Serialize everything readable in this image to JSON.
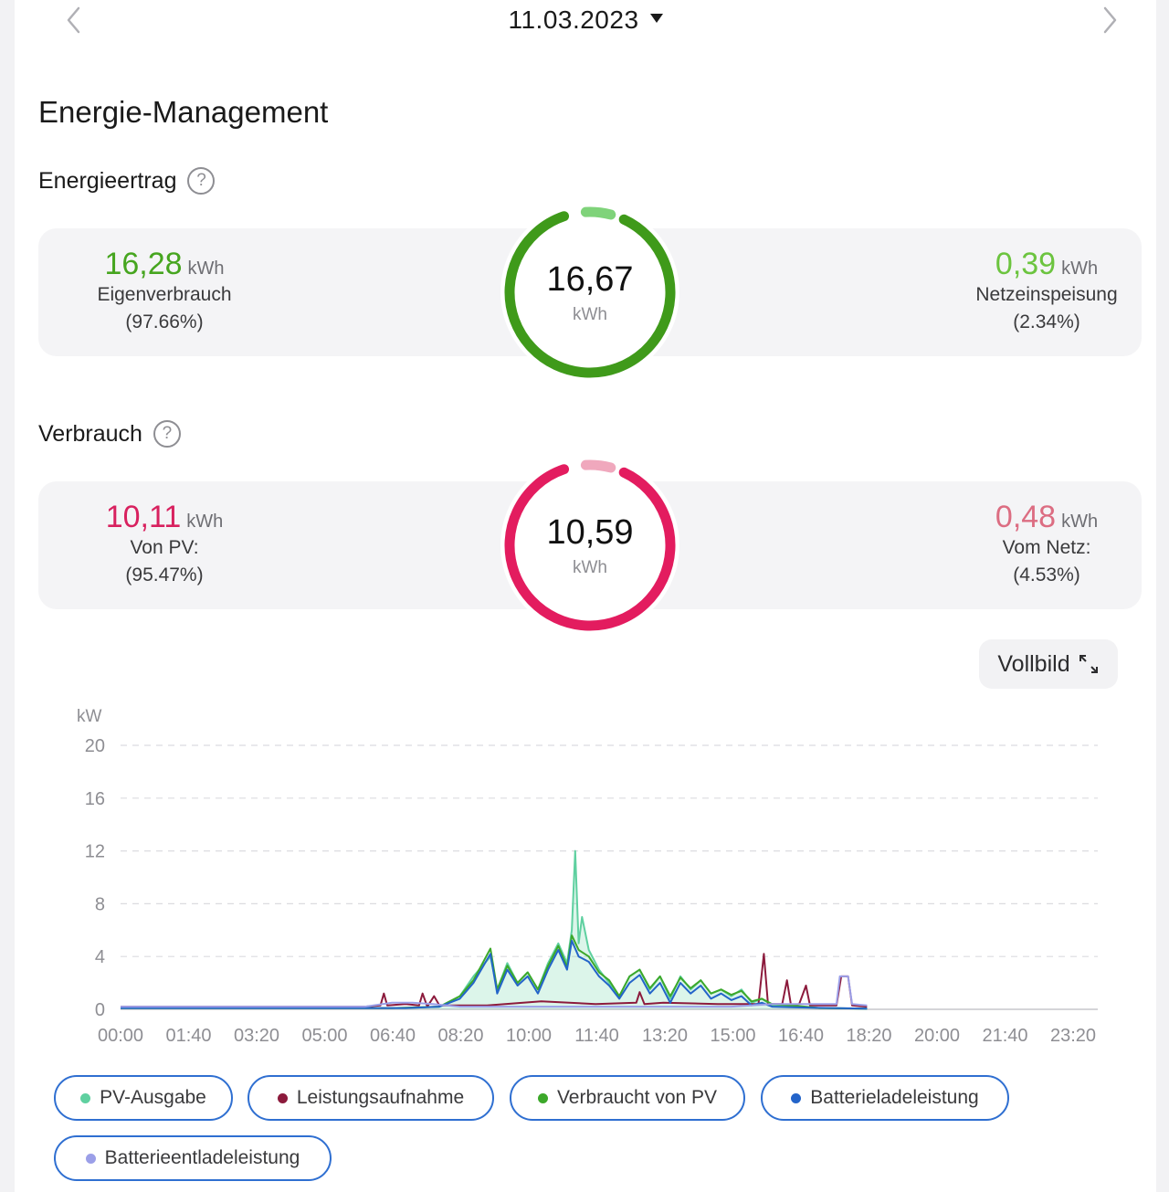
{
  "header": {
    "date": "11.03.2023",
    "prev_icon": "chevron-left-icon",
    "next_icon": "chevron-right-icon",
    "dropdown_icon": "caret-down-icon"
  },
  "page_title": "Energie-Management",
  "energieertrag": {
    "title": "Energieertrag",
    "help_icon": "?",
    "total": "16,67",
    "total_unit": "kWh",
    "left": {
      "value": "16,28",
      "unit": "kWh",
      "label": "Eigenverbrauch",
      "pct": "(97.66%)"
    },
    "right": {
      "value": "0,39",
      "unit": "kWh",
      "label": "Netzeinspeisung",
      "pct": "(2.34%)"
    },
    "colors": {
      "main": "#3f9a1a",
      "main_value": "#46a51f",
      "secondary": "#7fd37a"
    },
    "share_main": 0.9766
  },
  "verbrauch": {
    "title": "Verbrauch",
    "help_icon": "?",
    "total": "10,59",
    "total_unit": "kWh",
    "left": {
      "value": "10,11",
      "unit": "kWh",
      "label": "Von PV:",
      "pct": "(95.47%)"
    },
    "right": {
      "value": "0,48",
      "unit": "kWh",
      "label": "Vom Netz:",
      "pct": "(4.53%)"
    },
    "colors": {
      "main": "#e31c5f",
      "main_value": "#d8215f",
      "secondary": "#f0a8bd",
      "secondary_value": "#dc6d82"
    },
    "share_main": 0.9547
  },
  "fullscreen": {
    "label": "Vollbild",
    "icon": "expand-icon"
  },
  "chart_data": {
    "type": "line",
    "ylabel": "kW",
    "ylim": [
      0,
      20
    ],
    "yticks": [
      "0",
      "4",
      "8",
      "12",
      "16",
      "20"
    ],
    "xticks": [
      "00:00",
      "01:40",
      "03:20",
      "05:00",
      "06:40",
      "08:20",
      "10:00",
      "11:40",
      "13:20",
      "15:00",
      "16:40",
      "18:20",
      "20:00",
      "21:40",
      "23:20"
    ],
    "x_range_minutes": [
      0,
      1440
    ],
    "grid": true,
    "series": [
      {
        "name": "PV-Ausgabe",
        "color": "#5fd0a0",
        "area": true,
        "points": [
          [
            0,
            0.1
          ],
          [
            300,
            0.1
          ],
          [
            420,
            0.1
          ],
          [
            470,
            0.2
          ],
          [
            500,
            1.0
          ],
          [
            520,
            2.5
          ],
          [
            545,
            4.0
          ],
          [
            555,
            1.5
          ],
          [
            570,
            3.5
          ],
          [
            585,
            2.0
          ],
          [
            600,
            2.8
          ],
          [
            615,
            1.5
          ],
          [
            630,
            3.5
          ],
          [
            645,
            5.0
          ],
          [
            658,
            3.5
          ],
          [
            665,
            6.0
          ],
          [
            670,
            12.0
          ],
          [
            675,
            5.0
          ],
          [
            680,
            7.0
          ],
          [
            690,
            4.5
          ],
          [
            705,
            3.0
          ],
          [
            720,
            2.0
          ],
          [
            735,
            1.0
          ],
          [
            750,
            2.5
          ],
          [
            765,
            3.0
          ],
          [
            780,
            1.5
          ],
          [
            795,
            2.5
          ],
          [
            810,
            0.8
          ],
          [
            825,
            2.5
          ],
          [
            840,
            1.5
          ],
          [
            855,
            2.2
          ],
          [
            870,
            1.2
          ],
          [
            885,
            1.5
          ],
          [
            900,
            1.0
          ],
          [
            915,
            1.5
          ],
          [
            930,
            0.5
          ],
          [
            945,
            0.8
          ],
          [
            960,
            0.3
          ],
          [
            975,
            0.3
          ],
          [
            990,
            0.2
          ],
          [
            1030,
            0.1
          ],
          [
            1100,
            0.05
          ]
        ]
      },
      {
        "name": "Leistungsaufnahme",
        "color": "#8c1a3c",
        "area": false,
        "points": [
          [
            0,
            0.2
          ],
          [
            360,
            0.2
          ],
          [
            383,
            0.3
          ],
          [
            388,
            1.2
          ],
          [
            393,
            0.3
          ],
          [
            420,
            0.4
          ],
          [
            440,
            0.3
          ],
          [
            445,
            1.2
          ],
          [
            452,
            0.2
          ],
          [
            462,
            1.0
          ],
          [
            470,
            0.3
          ],
          [
            540,
            0.3
          ],
          [
            620,
            0.6
          ],
          [
            700,
            0.4
          ],
          [
            760,
            0.5
          ],
          [
            765,
            1.3
          ],
          [
            772,
            0.4
          ],
          [
            800,
            0.5
          ],
          [
            880,
            0.4
          ],
          [
            940,
            0.4
          ],
          [
            948,
            4.2
          ],
          [
            954,
            0.4
          ],
          [
            975,
            0.4
          ],
          [
            982,
            2.2
          ],
          [
            988,
            0.3
          ],
          [
            1000,
            0.4
          ],
          [
            1010,
            1.8
          ],
          [
            1016,
            0.3
          ],
          [
            1055,
            0.3
          ],
          [
            1062,
            2.5
          ],
          [
            1072,
            2.5
          ],
          [
            1078,
            0.3
          ],
          [
            1100,
            0.2
          ]
        ]
      },
      {
        "name": "Verbraucht von PV",
        "color": "#3ca82a",
        "area": false,
        "points": [
          [
            0,
            0.1
          ],
          [
            400,
            0.1
          ],
          [
            470,
            0.2
          ],
          [
            500,
            1.0
          ],
          [
            520,
            2.2
          ],
          [
            545,
            4.6
          ],
          [
            555,
            1.5
          ],
          [
            570,
            3.3
          ],
          [
            585,
            2.0
          ],
          [
            600,
            2.8
          ],
          [
            615,
            1.5
          ],
          [
            630,
            3.3
          ],
          [
            645,
            4.8
          ],
          [
            658,
            3.2
          ],
          [
            665,
            5.6
          ],
          [
            675,
            4.5
          ],
          [
            690,
            4.0
          ],
          [
            705,
            2.8
          ],
          [
            720,
            2.2
          ],
          [
            735,
            1.0
          ],
          [
            750,
            2.5
          ],
          [
            765,
            3.0
          ],
          [
            780,
            1.6
          ],
          [
            795,
            2.5
          ],
          [
            810,
            1.0
          ],
          [
            825,
            2.4
          ],
          [
            840,
            1.6
          ],
          [
            855,
            2.2
          ],
          [
            870,
            1.2
          ],
          [
            885,
            1.5
          ],
          [
            900,
            1.1
          ],
          [
            915,
            1.4
          ],
          [
            930,
            0.6
          ],
          [
            945,
            0.8
          ],
          [
            960,
            0.4
          ],
          [
            990,
            0.3
          ],
          [
            1030,
            0.1
          ],
          [
            1100,
            0.05
          ]
        ]
      },
      {
        "name": "Batterieladeleistung",
        "color": "#2364c9",
        "area": false,
        "points": [
          [
            0,
            0.1
          ],
          [
            420,
            0.1
          ],
          [
            470,
            0.2
          ],
          [
            500,
            0.8
          ],
          [
            520,
            2.0
          ],
          [
            545,
            4.2
          ],
          [
            555,
            1.2
          ],
          [
            570,
            3.0
          ],
          [
            585,
            1.8
          ],
          [
            600,
            2.5
          ],
          [
            615,
            1.2
          ],
          [
            630,
            3.0
          ],
          [
            645,
            4.5
          ],
          [
            658,
            3.0
          ],
          [
            665,
            5.2
          ],
          [
            675,
            4.0
          ],
          [
            690,
            3.6
          ],
          [
            705,
            2.5
          ],
          [
            720,
            1.8
          ],
          [
            735,
            0.8
          ],
          [
            750,
            2.0
          ],
          [
            765,
            2.6
          ],
          [
            780,
            1.2
          ],
          [
            795,
            2.0
          ],
          [
            810,
            0.5
          ],
          [
            825,
            2.0
          ],
          [
            840,
            1.2
          ],
          [
            855,
            1.8
          ],
          [
            870,
            0.8
          ],
          [
            885,
            1.2
          ],
          [
            900,
            0.7
          ],
          [
            915,
            1.0
          ],
          [
            930,
            0.3
          ],
          [
            945,
            0.5
          ],
          [
            960,
            0.2
          ],
          [
            990,
            0.15
          ],
          [
            1100,
            0.05
          ]
        ]
      },
      {
        "name": "Batterieentladeleistung",
        "color": "#9b9fe8",
        "area": false,
        "points": [
          [
            0,
            0.2
          ],
          [
            360,
            0.2
          ],
          [
            400,
            0.5
          ],
          [
            430,
            0.5
          ],
          [
            460,
            0.4
          ],
          [
            500,
            0.2
          ],
          [
            900,
            0.2
          ],
          [
            960,
            0.4
          ],
          [
            1040,
            0.4
          ],
          [
            1055,
            0.4
          ],
          [
            1060,
            2.5
          ],
          [
            1072,
            2.5
          ],
          [
            1078,
            0.4
          ],
          [
            1100,
            0.3
          ]
        ]
      }
    ]
  },
  "legend": [
    {
      "label": "PV-Ausgabe",
      "color": "#5fd0a0"
    },
    {
      "label": "Leistungsaufnahme",
      "color": "#8c1a3c"
    },
    {
      "label": "Verbraucht von PV",
      "color": "#3ca82a"
    },
    {
      "label": "Batterieladeleistung",
      "color": "#2364c9"
    },
    {
      "label": "Batterieentladeleistung",
      "color": "#9b9fe8"
    }
  ]
}
